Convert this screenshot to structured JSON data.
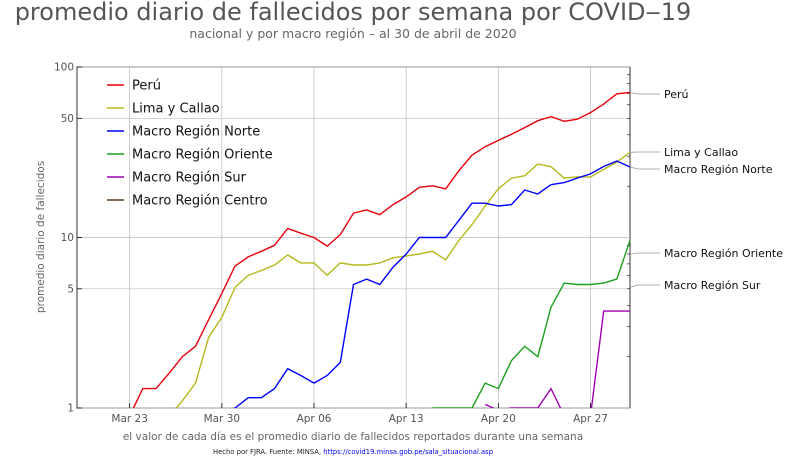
{
  "chart_data": {
    "type": "line",
    "title": "promedio diario de fallecidos por semana por COVID‒19",
    "subtitle": "nacional y por macro región – al 30 de abril de 2020",
    "ylabel": "promedio diario de fallecidos",
    "xlabel": "el valor de cada día es el promedio diario de fallecidos reportados durante una semana",
    "footer_prefix": "Hecho por FJRA. Fuente: MINSA, ",
    "footer_link": "https://covid19.minsa.gob.pe/sala_situacional.asp",
    "yscale": "log",
    "ylim": [
      1,
      100
    ],
    "yticks": [
      1,
      5,
      10,
      50,
      100
    ],
    "xlim": [
      "2020-03-19",
      "2020-04-30"
    ],
    "xticks": [
      {
        "date": "2020-03-23",
        "label": "Mar 23"
      },
      {
        "date": "2020-03-30",
        "label": "Mar 30"
      },
      {
        "date": "2020-04-06",
        "label": "Apr 06"
      },
      {
        "date": "2020-04-13",
        "label": "Apr 13"
      },
      {
        "date": "2020-04-20",
        "label": "Apr 20"
      },
      {
        "date": "2020-04-27",
        "label": "Apr 27"
      }
    ],
    "grid": true,
    "legend_position": "top-left",
    "series": [
      {
        "name": "Perú",
        "color": "#e8000b",
        "start": "2020-03-23",
        "values": [
          0.9,
          1.3,
          1.3,
          1.6,
          2.0,
          2.3,
          3.3,
          4.7,
          6.8,
          7.7,
          8.3,
          9.0,
          11.3,
          10.6,
          10.0,
          8.9,
          10.4,
          13.9,
          14.5,
          13.6,
          15.6,
          17.3,
          19.7,
          20.1,
          19.3,
          24.6,
          30.4,
          34.1,
          37.1,
          40.3,
          44.1,
          48.4,
          51.2,
          48.0,
          49.4,
          54.0,
          60.6,
          69.6,
          70.9
        ]
      },
      {
        "name": "Lima y Callao",
        "color": "#b5b81a",
        "start": "2020-03-26",
        "values": [
          0.9,
          1.1,
          1.4,
          2.6,
          3.4,
          5.1,
          6.0,
          6.4,
          6.9,
          7.9,
          7.1,
          7.1,
          6.0,
          7.1,
          6.9,
          6.9,
          7.1,
          7.6,
          7.8,
          8.0,
          8.3,
          7.4,
          9.6,
          11.9,
          15.3,
          19.3,
          22.3,
          23.0,
          27.0,
          26.0,
          22.3,
          22.7,
          22.6,
          25.1,
          27.7,
          31.6
        ]
      },
      {
        "name": "Macro Región Norte",
        "color": "#0000ff",
        "start": "2020-03-30",
        "values": [
          0.95,
          1.0,
          1.15,
          1.15,
          1.3,
          1.7,
          1.55,
          1.4,
          1.55,
          1.85,
          5.3,
          5.7,
          5.3,
          6.7,
          8.0,
          10.0,
          10.0,
          10.0,
          12.6,
          15.9,
          15.9,
          15.3,
          15.6,
          19.0,
          18.0,
          20.4,
          21.0,
          22.3,
          23.6,
          26.1,
          28.1,
          25.9
        ]
      },
      {
        "name": "Macro Región Oriente",
        "color": "#1aa01a",
        "start": "2020-04-15",
        "values": [
          1.0,
          1.0,
          1.0,
          1.0,
          1.4,
          1.3,
          1.9,
          2.3,
          2.0,
          3.9,
          5.4,
          5.3,
          5.3,
          5.4,
          5.7,
          9.6,
          8.0
        ]
      },
      {
        "name": "Macro Región Sur",
        "color": "#a000b0",
        "start": "2020-04-19",
        "values": [
          1.05,
          0.97,
          1.0,
          1.0,
          1.0,
          1.3,
          0.9,
          0.9,
          0.9,
          3.7,
          3.7,
          3.7,
          5.1
        ]
      },
      {
        "name": "Macro Región Centro",
        "color": "#5a3a1a",
        "start": "2020-03-19",
        "values": []
      }
    ],
    "end_labels": [
      {
        "series": "Perú",
        "value": 70.9
      },
      {
        "series": "Lima y Callao",
        "value": 31.6
      },
      {
        "series": "Macro Región Norte",
        "value": 25.9
      },
      {
        "series": "Macro Región Oriente",
        "value": 8.0
      },
      {
        "series": "Macro Región Sur",
        "value": 5.1
      }
    ]
  }
}
